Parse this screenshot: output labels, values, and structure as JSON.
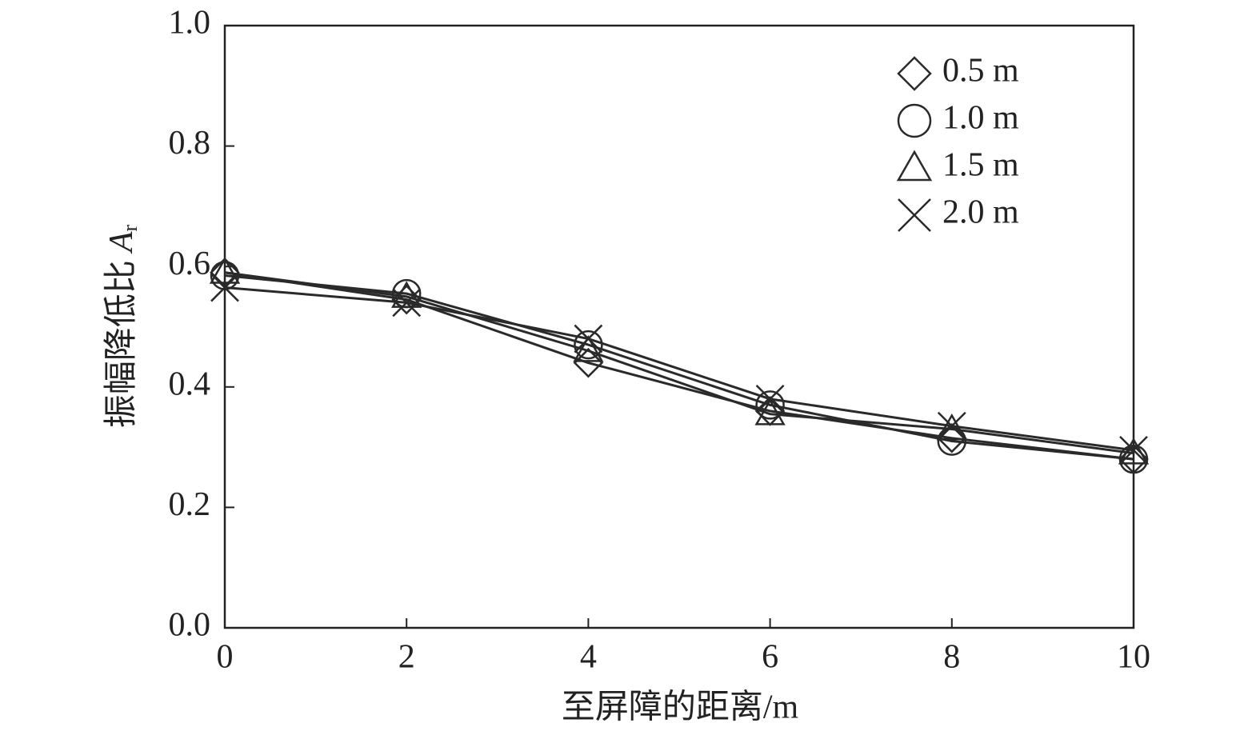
{
  "chart_data": {
    "type": "line",
    "x_label": "至屏障的距离/m",
    "y_label": {
      "text": "振幅降低比",
      "symbol": "A",
      "subscript": "r"
    },
    "x": [
      0,
      2,
      4,
      6,
      8,
      10
    ],
    "xlim": [
      0,
      10
    ],
    "xticks": [
      0,
      2,
      4,
      6,
      8,
      10
    ],
    "ylim": [
      0,
      1
    ],
    "yticks": [
      {
        "value": 0,
        "label": "0.0"
      },
      0.2,
      0.4,
      0.6,
      0.8,
      {
        "value": 1,
        "label": "1.0"
      }
    ],
    "legend_position": "upper right",
    "line_color": "#2a2a2a",
    "series": [
      {
        "name": "0.5 m",
        "marker": "diamond",
        "color": "#2a2a2a",
        "values": [
          0.59,
          0.545,
          0.44,
          0.36,
          0.315,
          0.28
        ]
      },
      {
        "name": "1.0 m",
        "marker": "circle",
        "color": "#2a2a2a",
        "values": [
          0.585,
          0.555,
          0.47,
          0.37,
          0.31,
          0.28
        ]
      },
      {
        "name": "1.5 m",
        "marker": "triangle",
        "color": "#2a2a2a",
        "values": [
          0.59,
          0.55,
          0.46,
          0.355,
          0.33,
          0.29
        ]
      },
      {
        "name": "2.0 m",
        "marker": "cross",
        "color": "#2a2a2a",
        "values": [
          0.565,
          0.54,
          0.48,
          0.38,
          0.335,
          0.295
        ]
      }
    ]
  }
}
